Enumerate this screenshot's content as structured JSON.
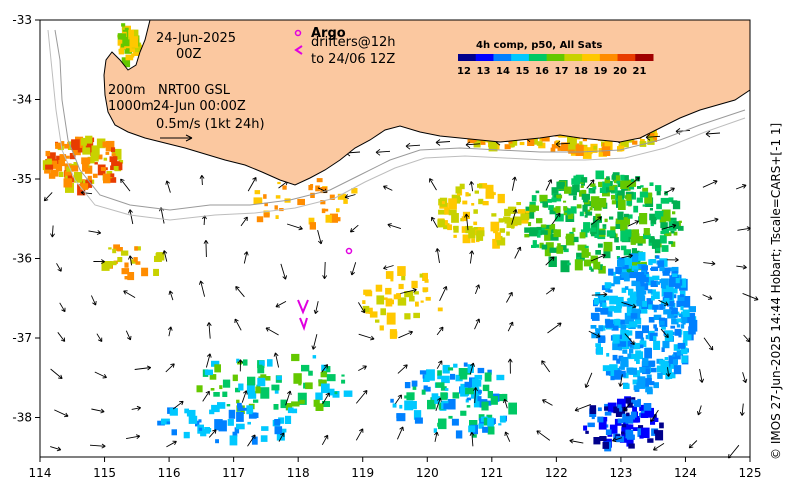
{
  "annotations": {
    "date": "24-Jun-2025",
    "hour": "00Z",
    "depth_200": "200m",
    "depth_1000": "1000m",
    "product": "NRT00 GSL",
    "product_time": "24-Jun 00:00Z",
    "scale_label": "0.5m/s (1kt 24h)",
    "argo": "Argo",
    "drifters_line1": "drifters@12h",
    "drifters_line2": "to 24/06 12Z",
    "credit": "© IMOS 27-Jun-2025 14:44 Hobart; Tscale=CARS+[-1 1]"
  },
  "colorbar": {
    "title": "4h comp, p50, All Sats",
    "ticks": [
      "12",
      "13",
      "14",
      "15",
      "16",
      "17",
      "18",
      "19",
      "20",
      "21"
    ],
    "colors": [
      "#00008c",
      "#0000ff",
      "#0080ff",
      "#00c8ff",
      "#00c864",
      "#64c800",
      "#c8d200",
      "#ffc800",
      "#ff8c00",
      "#e83c00",
      "#a00000"
    ]
  },
  "axes": {
    "x_ticks": [
      "114",
      "115",
      "116",
      "117",
      "118",
      "119",
      "120",
      "121",
      "122",
      "123",
      "124",
      "125"
    ],
    "y_ticks": [
      "-33",
      "-34",
      "-35",
      "-36",
      "-37",
      "-38"
    ]
  },
  "colors": {
    "land": "#fbc8a0",
    "argo": "#e000e0"
  }
}
